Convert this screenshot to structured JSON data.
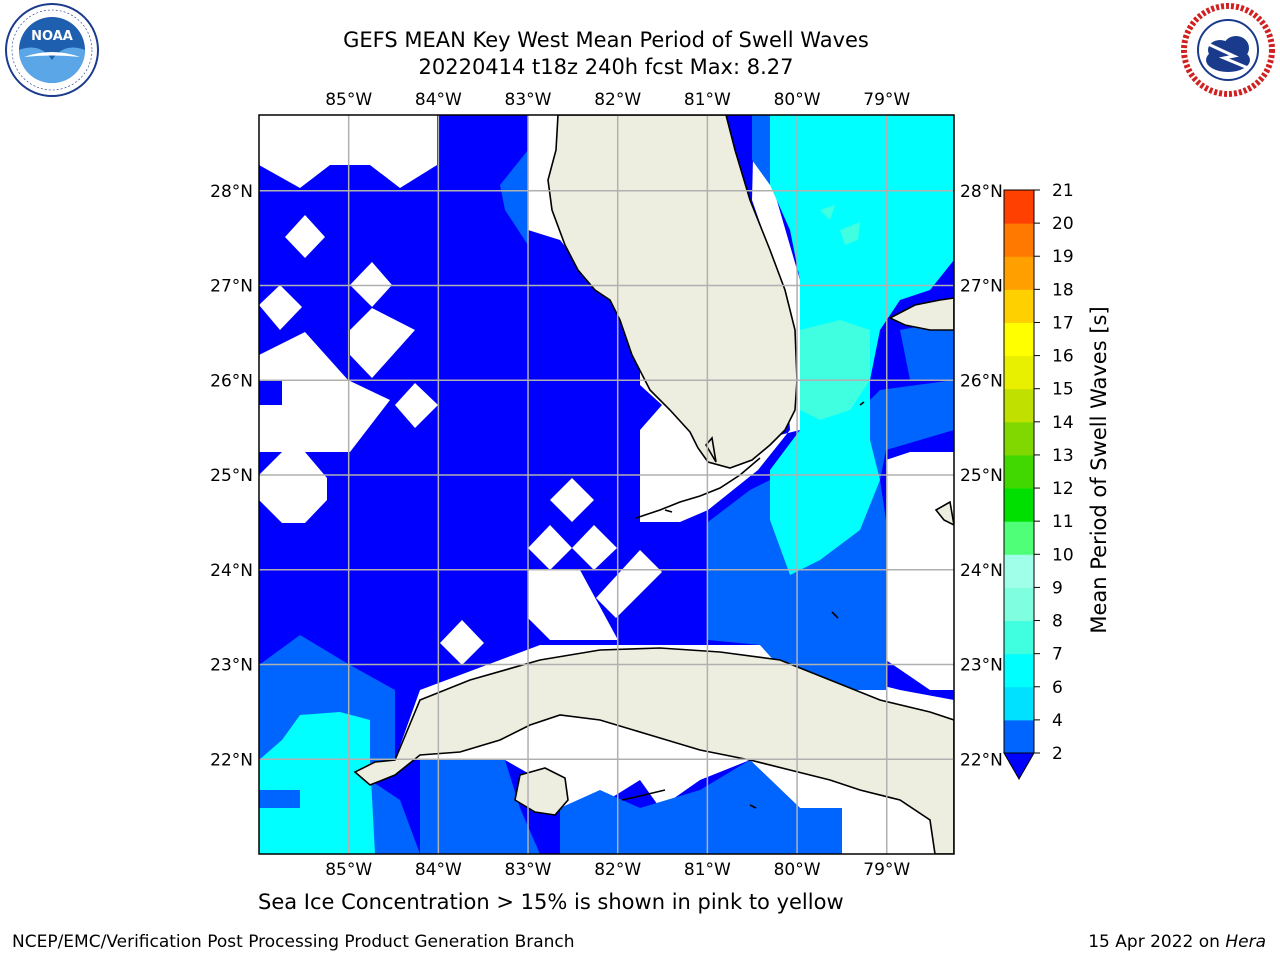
{
  "header": {
    "title_line1": "GEFS MEAN Key West Mean Period of Swell Waves",
    "title_line2": "20220414 t18z 240h fcst   Max: 8.27"
  },
  "logos": {
    "left": {
      "name": "noaa-logo",
      "text": "NOAA",
      "ring_text": "NATIONAL OCEANIC AND ATMOSPHERIC ADMINISTRATION · U.S. DEPARTMENT OF COMMERCE"
    },
    "right": {
      "name": "nws-logo",
      "ring_text": "NATIONAL WEATHER SERVICE"
    }
  },
  "map": {
    "lon_labels": [
      "85°W",
      "84°W",
      "83°W",
      "82°W",
      "81°W",
      "80°W",
      "79°W"
    ],
    "lat_labels": [
      "28°N",
      "27°N",
      "26°N",
      "25°N",
      "24°N",
      "23°N",
      "22°N"
    ],
    "lon_range": [
      -86,
      -78.25
    ],
    "lat_range": [
      21,
      28.8
    ],
    "grid": true,
    "land_color": "#eeeee0",
    "ocean_nodata_color": "#ffffff"
  },
  "colorbar": {
    "label": "Mean Period of Swell Waves [s]",
    "ticks": [
      "2",
      "4",
      "6",
      "7",
      "8",
      "9",
      "10",
      "11",
      "12",
      "13",
      "14",
      "15",
      "16",
      "17",
      "18",
      "19",
      "20",
      "21"
    ],
    "colors": [
      "#0064ff",
      "#00e0ff",
      "#00ffff",
      "#40ffe0",
      "#80ffe0",
      "#a0ffe8",
      "#50ff78",
      "#00e000",
      "#40d800",
      "#80d800",
      "#c0e000",
      "#e8f000",
      "#ffff00",
      "#ffd000",
      "#ffa000",
      "#ff7800",
      "#ff4000"
    ],
    "under_color": "#0000ff"
  },
  "note": "Sea Ice Concentration > 15% is shown in pink to yellow",
  "footer": {
    "left": "NCEP/EMC/Verification Post Processing Product Generation Branch",
    "date": "15 Apr 2022 on ",
    "host": "Hera"
  }
}
